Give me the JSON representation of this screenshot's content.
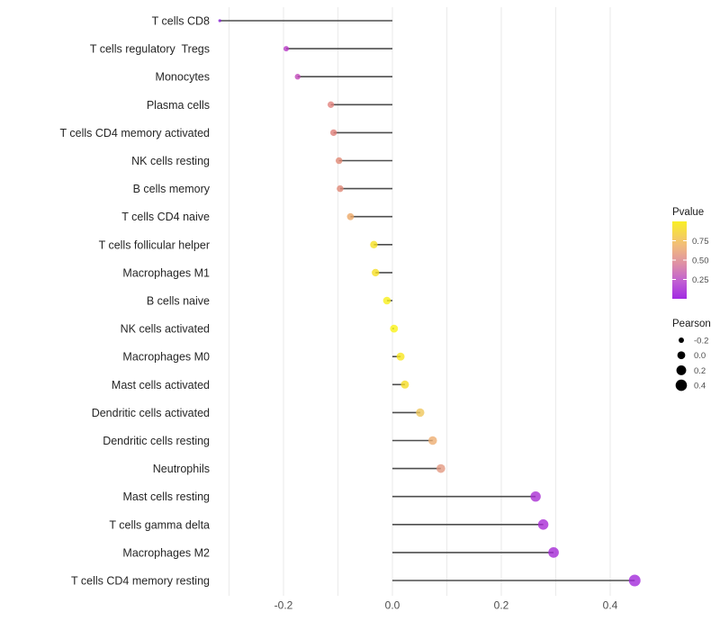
{
  "figure": {
    "background": "#FFFFFF",
    "grid_color": "#ECECEC",
    "stick_color": "#4D4D4D",
    "cell_label_color": "#262626",
    "axis_tick_color": "#4D4D4D",
    "legend_title_color": "#1A1A1A"
  },
  "chart_data": {
    "type": "scatter",
    "subtype": "lollipop",
    "title": "",
    "xlabel": "",
    "ylabel": "",
    "grid": "vertical-only",
    "xlim": [
      -0.355,
      0.483
    ],
    "x_gridlines": [
      -0.3,
      -0.2,
      -0.1,
      0.0,
      0.1,
      0.2,
      0.3,
      0.4
    ],
    "x_ticks": [
      -0.2,
      0.0,
      0.2,
      0.4
    ],
    "x_tick_labels": [
      "-0.2",
      "0.0",
      "0.2",
      "0.4"
    ],
    "points": [
      {
        "label": "T cells CD8",
        "pearson": -0.317,
        "color": "#8A22D6"
      },
      {
        "label": "T cells regulatory  Tregs",
        "pearson": -0.195,
        "color": "#B83AC6"
      },
      {
        "label": "Monocytes",
        "pearson": -0.174,
        "color": "#C249BA"
      },
      {
        "label": "Plasma cells",
        "pearson": -0.113,
        "color": "#E2837E"
      },
      {
        "label": "T cells CD4 memory activated",
        "pearson": -0.108,
        "color": "#E08079"
      },
      {
        "label": "NK cells resting",
        "pearson": -0.098,
        "color": "#E18A76"
      },
      {
        "label": "B cells memory",
        "pearson": -0.096,
        "color": "#E08877"
      },
      {
        "label": "T cells CD4 naive",
        "pearson": -0.077,
        "color": "#ECA866"
      },
      {
        "label": "T cells follicular helper",
        "pearson": -0.034,
        "color": "#F6E122"
      },
      {
        "label": "Macrophages M1",
        "pearson": -0.031,
        "color": "#F6DF23"
      },
      {
        "label": "B cells naive",
        "pearson": -0.01,
        "color": "#F8EF1C"
      },
      {
        "label": "NK cells activated",
        "pearson": 0.003,
        "color": "#FAF317"
      },
      {
        "label": "Macrophages M0",
        "pearson": 0.015,
        "color": "#F7E61F"
      },
      {
        "label": "Mast cells activated",
        "pearson": 0.023,
        "color": "#F5DC27"
      },
      {
        "label": "Dendritic cells activated",
        "pearson": 0.051,
        "color": "#EFC75B"
      },
      {
        "label": "Dendritic cells resting",
        "pearson": 0.074,
        "color": "#EDAE72"
      },
      {
        "label": "Neutrophils",
        "pearson": 0.089,
        "color": "#E39A82"
      },
      {
        "label": "Mast cells resting",
        "pearson": 0.263,
        "color": "#A92FD3"
      },
      {
        "label": "T cells gamma delta",
        "pearson": 0.277,
        "color": "#A92BD6"
      },
      {
        "label": "Macrophages M2",
        "pearson": 0.296,
        "color": "#A52BD6"
      },
      {
        "label": "T cells CD4 memory resting",
        "pearson": 0.445,
        "color": "#A32BDB"
      }
    ],
    "size_scale": {
      "domain": [
        -0.32,
        0.45
      ],
      "radius_range": [
        1.6,
        6.5
      ]
    },
    "legend": {
      "position": "right",
      "pvalue": {
        "title": "Pvalue",
        "range": [
          0,
          1
        ],
        "tick_values": [
          0.75,
          0.5,
          0.25
        ],
        "tick_labels": [
          "0.75",
          "0.50",
          "0.25"
        ],
        "gradient_stops": [
          {
            "offset": 0.0,
            "color": "#F9EF25"
          },
          {
            "offset": 0.3,
            "color": "#F2BE79"
          },
          {
            "offset": 0.55,
            "color": "#DE8FA6"
          },
          {
            "offset": 0.78,
            "color": "#C05ED3"
          },
          {
            "offset": 1.0,
            "color": "#A22BE2"
          }
        ]
      },
      "pearson": {
        "title": "Pearson",
        "size_values": [
          -0.2,
          0.0,
          0.2,
          0.4
        ],
        "size_labels": [
          "-0.2",
          "0.0",
          "0.2",
          "0.4"
        ],
        "dot_color": "#000000"
      }
    }
  }
}
